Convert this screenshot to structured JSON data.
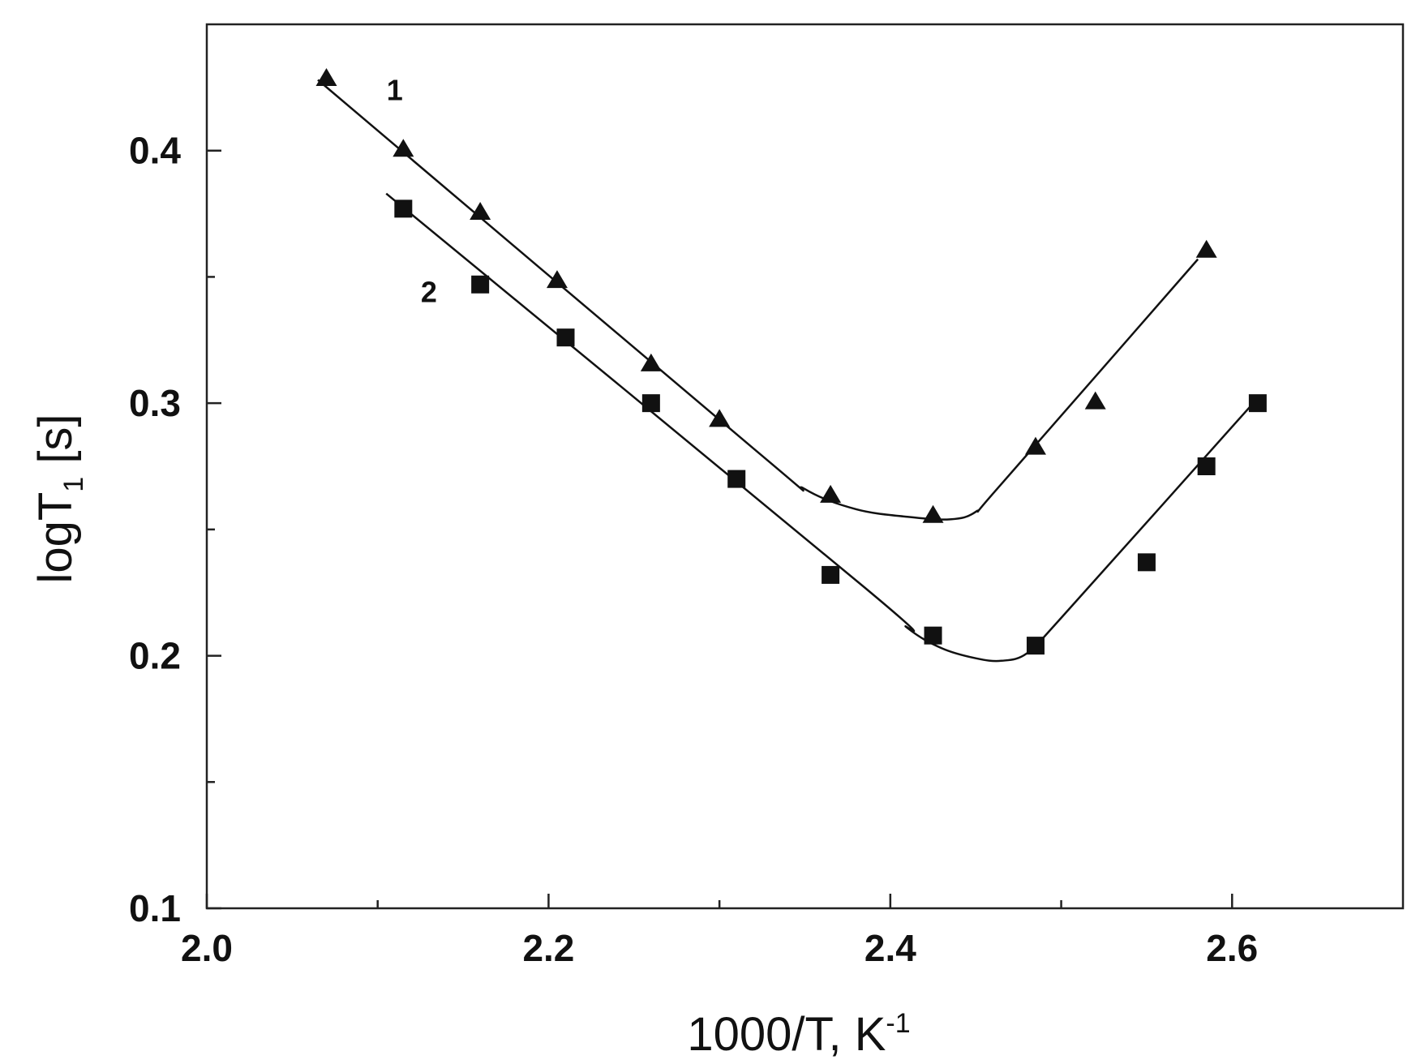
{
  "chart_data": {
    "type": "scatter",
    "title": "",
    "xlabel": "1000/T, K",
    "xlabel_sup": "-1",
    "ylabel": "logT",
    "ylabel_sub": "1",
    "ylabel_suffix": " [s]",
    "xlim": [
      2.0,
      2.7
    ],
    "ylim": [
      0.1,
      0.45
    ],
    "x_ticks": [
      {
        "value": 2.0,
        "label": "2.0"
      },
      {
        "value": 2.2,
        "label": "2.2"
      },
      {
        "value": 2.4,
        "label": "2.4"
      },
      {
        "value": 2.6,
        "label": "2.6"
      }
    ],
    "x_minor_ticks": [
      2.1,
      2.3,
      2.5
    ],
    "y_ticks": [
      {
        "value": 0.1,
        "label": "0.1"
      },
      {
        "value": 0.2,
        "label": "0.2"
      },
      {
        "value": 0.3,
        "label": "0.3"
      },
      {
        "value": 0.4,
        "label": "0.4"
      }
    ],
    "y_minor_ticks": [
      0.15,
      0.25,
      0.35
    ],
    "grid": false,
    "series": [
      {
        "name": "1",
        "marker": "triangle",
        "label_at": {
          "x": 2.11,
          "y": 0.42
        },
        "x": [
          2.07,
          2.115,
          2.16,
          2.205,
          2.26,
          2.3,
          2.365,
          2.425,
          2.485,
          2.52,
          2.585
        ],
        "y": [
          0.428,
          0.4,
          0.375,
          0.348,
          0.315,
          0.293,
          0.263,
          0.255,
          0.282,
          0.3,
          0.36
        ],
        "fit": {
          "x": [
            2.065,
            2.32,
            2.35,
            2.38,
            2.41,
            2.435,
            2.45,
            2.465,
            2.58
          ],
          "y": [
            0.428,
            0.282,
            0.266,
            0.258,
            0.255,
            0.254,
            0.257,
            0.268,
            0.357
          ]
        }
      },
      {
        "name": "2",
        "marker": "square",
        "label_at": {
          "x": 2.13,
          "y": 0.34
        },
        "x": [
          2.115,
          2.16,
          2.21,
          2.26,
          2.31,
          2.365,
          2.425,
          2.485,
          2.55,
          2.585,
          2.615
        ],
        "y": [
          0.377,
          0.347,
          0.326,
          0.3,
          0.27,
          0.232,
          0.208,
          0.204,
          0.237,
          0.275,
          0.3
        ],
        "fit": {
          "x": [
            2.105,
            2.385,
            2.41,
            2.43,
            2.45,
            2.465,
            2.48,
            2.5,
            2.615
          ],
          "y": [
            0.383,
            0.227,
            0.211,
            0.203,
            0.199,
            0.198,
            0.201,
            0.215,
            0.302
          ]
        }
      }
    ]
  }
}
